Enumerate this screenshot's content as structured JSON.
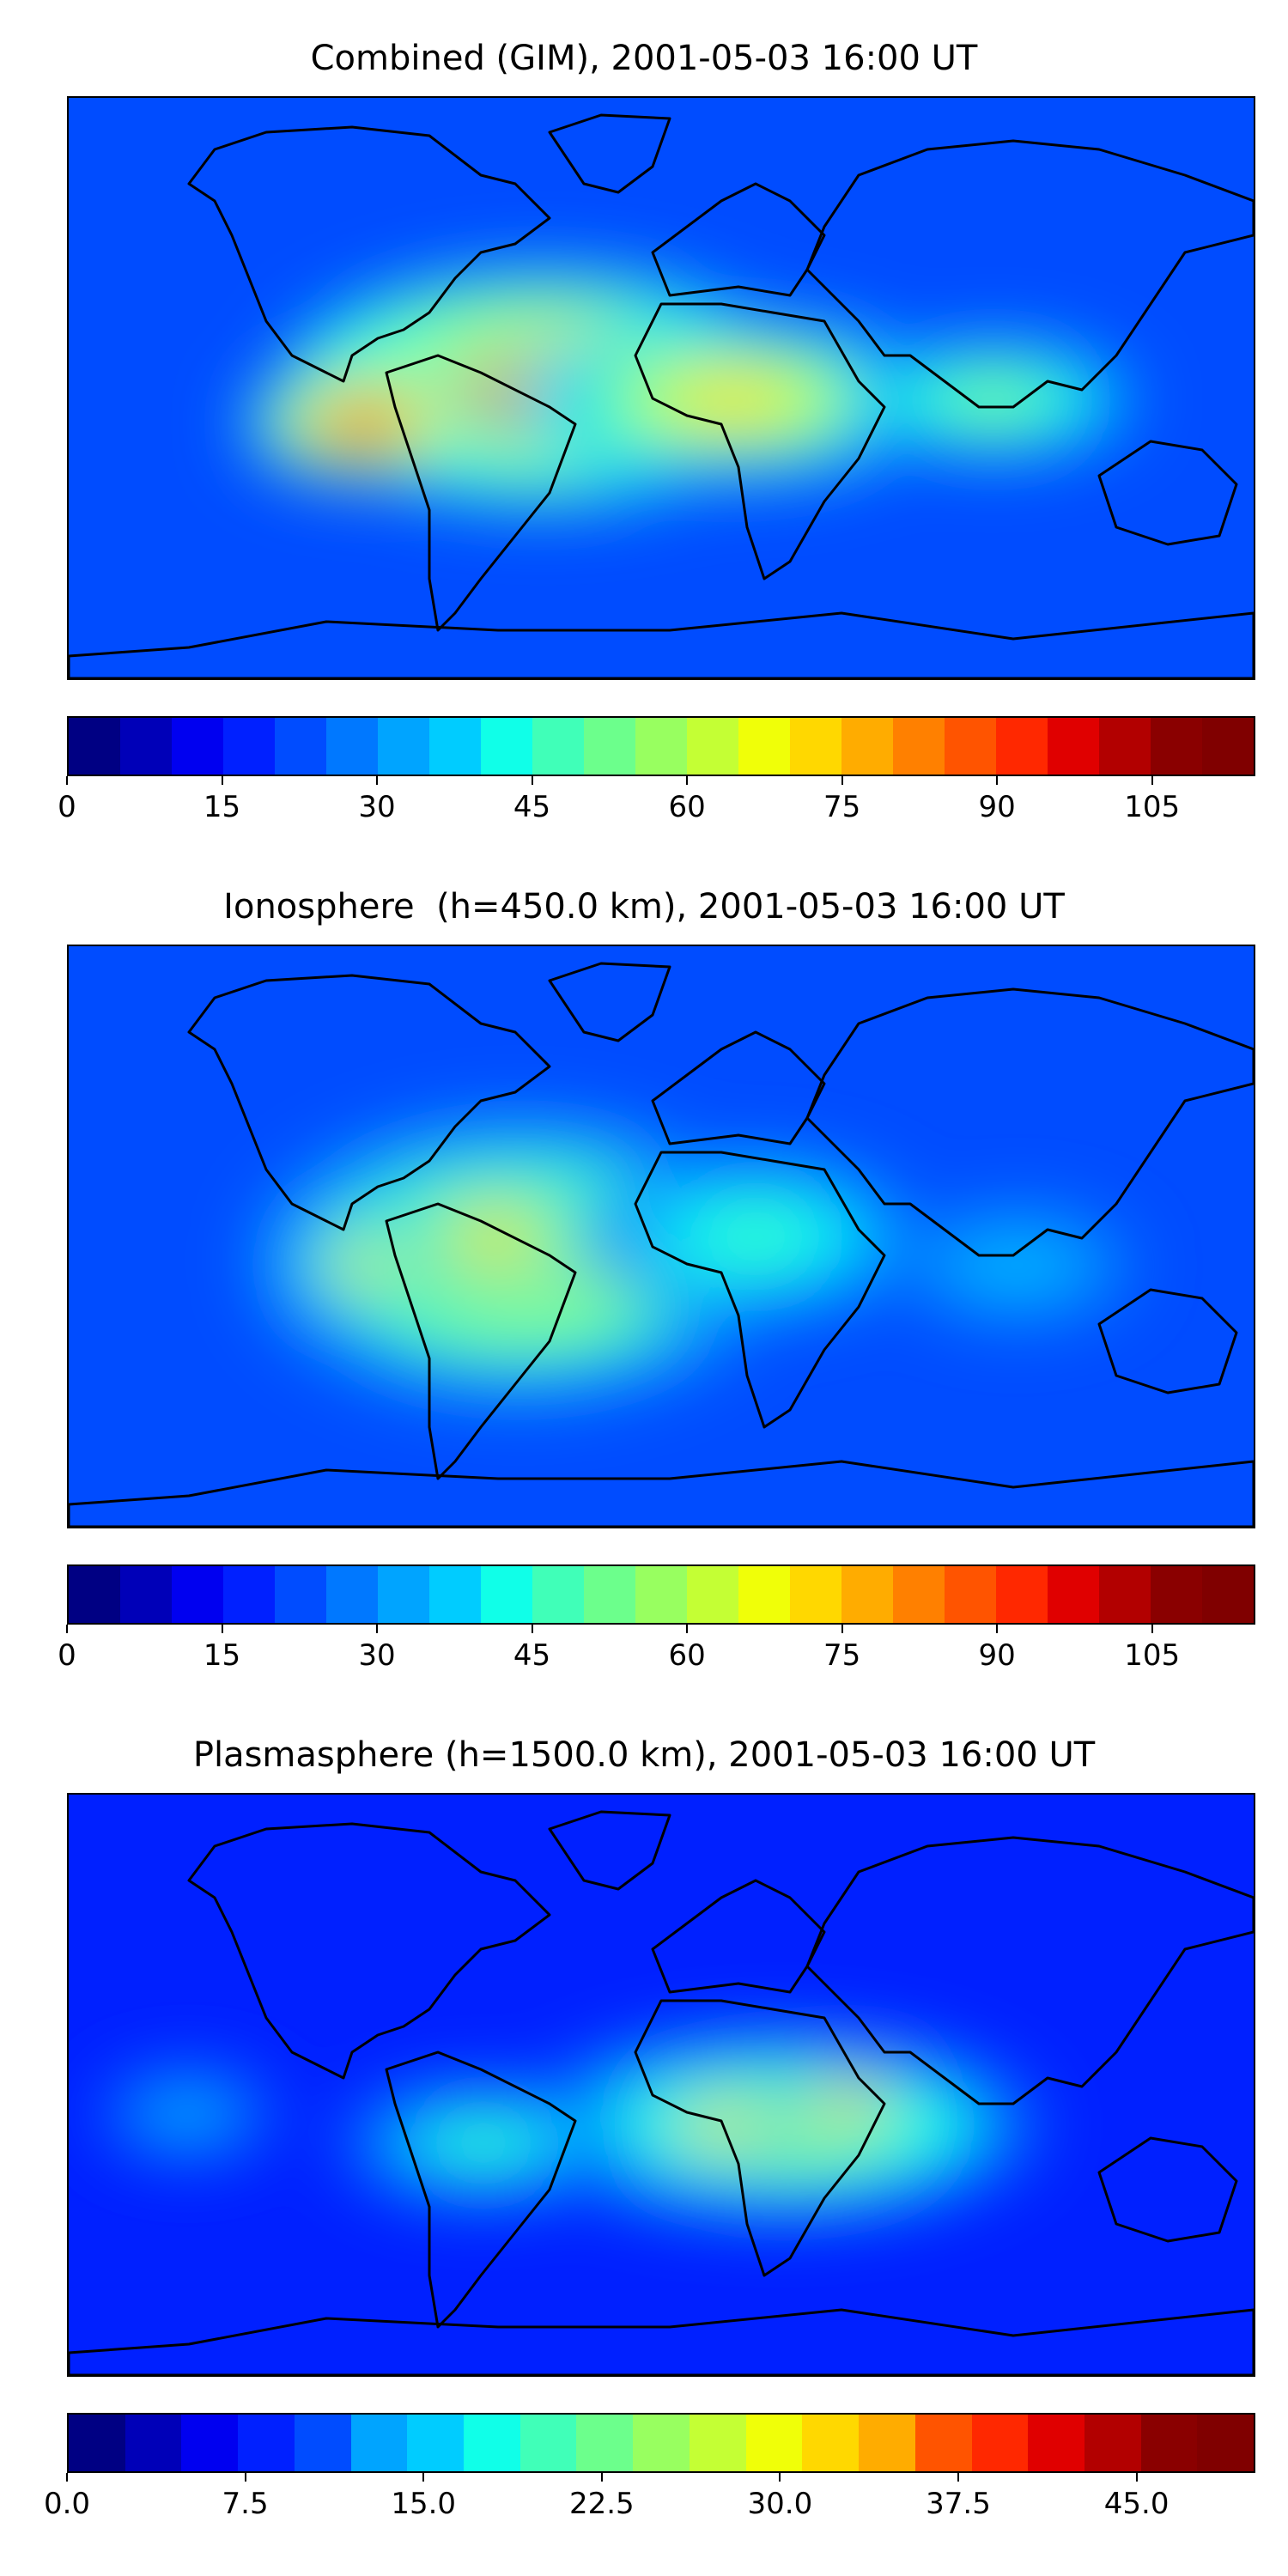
{
  "panels": [
    {
      "title": "Combined (GIM), 2001-05-03 16:00 UT",
      "colorbar": {
        "min": 0,
        "max": 115,
        "levels": 23,
        "ticks": [
          "0",
          "15",
          "30",
          "45",
          "60",
          "75",
          "90",
          "105"
        ],
        "tick_values": [
          0,
          15,
          30,
          45,
          60,
          75,
          90,
          105
        ]
      }
    },
    {
      "title": "Ionosphere  (h=450.0 km), 2001-05-03 16:00 UT",
      "colorbar": {
        "min": 0,
        "max": 115,
        "levels": 23,
        "ticks": [
          "0",
          "15",
          "30",
          "45",
          "60",
          "75",
          "90",
          "105"
        ],
        "tick_values": [
          0,
          15,
          30,
          45,
          60,
          75,
          90,
          105
        ]
      }
    },
    {
      "title": "Plasmasphere (h=1500.0 km), 2001-05-03 16:00 UT",
      "colorbar": {
        "min": 0,
        "max": 50,
        "levels": 21,
        "ticks": [
          "0.0",
          "7.5",
          "15.0",
          "22.5",
          "30.0",
          "37.5",
          "45.0"
        ],
        "tick_values": [
          0,
          7.5,
          15,
          22.5,
          30,
          37.5,
          45
        ]
      }
    }
  ],
  "colormap": "jet",
  "colors": {
    "jet": [
      "#000083",
      "#0000b8",
      "#0000f0",
      "#0020ff",
      "#004cff",
      "#0078ff",
      "#00a4ff",
      "#00ccff",
      "#10ffe8",
      "#40ffb8",
      "#6cff8c",
      "#98ff60",
      "#c4ff34",
      "#f0ff08",
      "#ffd800",
      "#ffac00",
      "#ff8000",
      "#ff5400",
      "#ff2800",
      "#e00000",
      "#b20000",
      "#8a0000",
      "#800000"
    ],
    "coastline": "#000000"
  }
}
